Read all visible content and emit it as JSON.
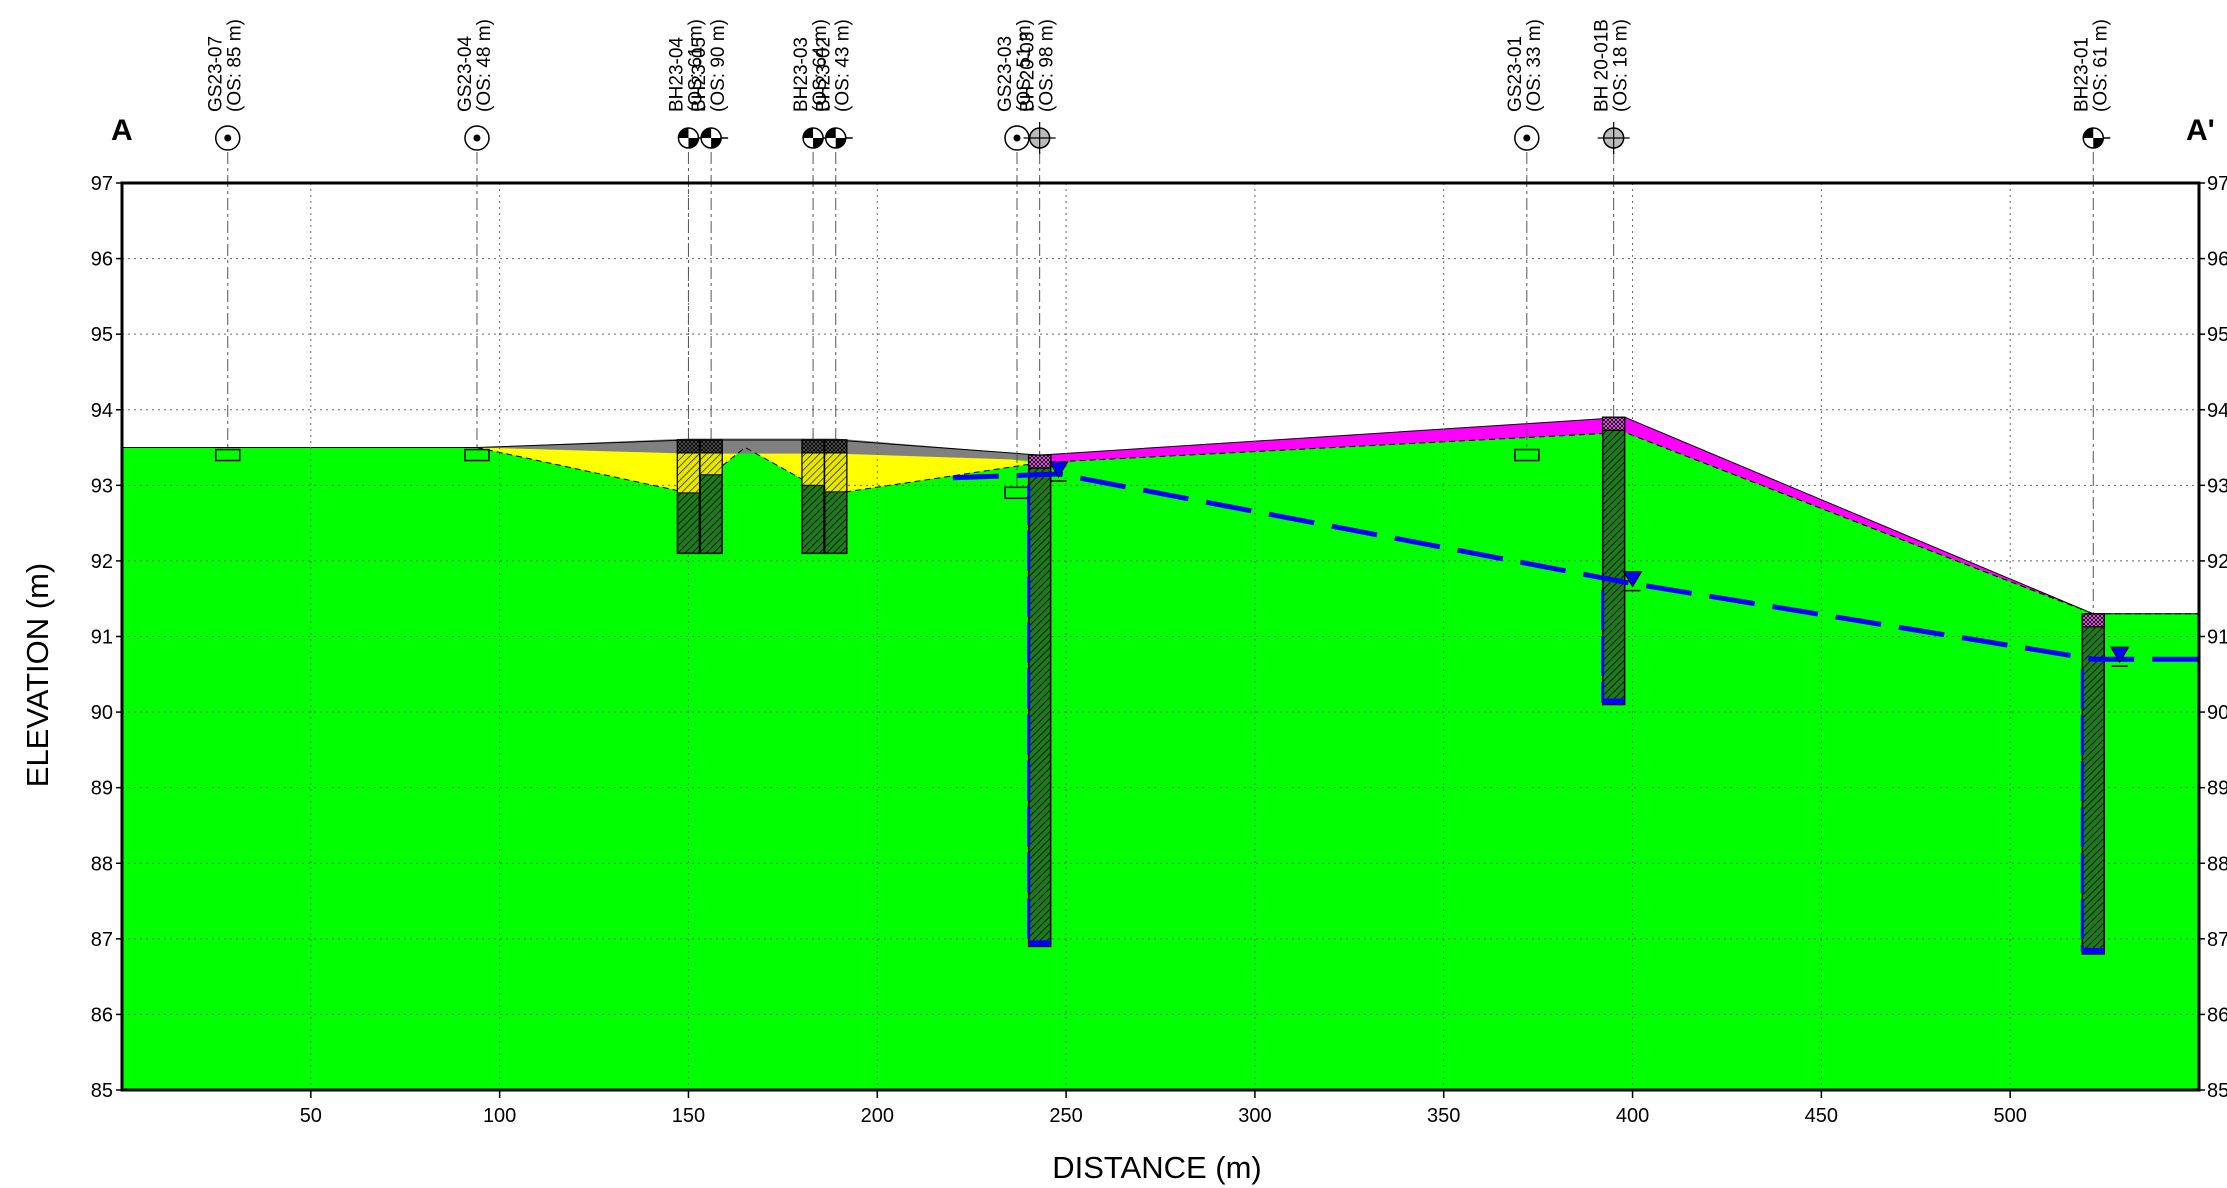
{
  "section": {
    "start_label": "A",
    "end_label": "A'",
    "x_axis_title": "DISTANCE (m)",
    "y_axis_title": "ELEVATION (m)",
    "x_ticks": [
      50,
      100,
      150,
      200,
      250,
      300,
      350,
      400,
      450,
      500
    ],
    "y_ticks_left": [
      "97",
      "96",
      "95",
      "94",
      "93",
      "92",
      "91",
      "90",
      "89",
      "88",
      "87",
      "86",
      "85"
    ],
    "y_ticks_right": [
      "97",
      "96",
      "95",
      "94",
      "93",
      "92",
      "91",
      "90",
      "89",
      "88",
      "87",
      "86",
      "85"
    ],
    "x_range": [
      0,
      550
    ],
    "y_range": [
      85,
      97
    ],
    "grid": true
  },
  "boreholes": [
    {
      "id": "GS23-07",
      "offset": "(OS: 85 m)",
      "symbol": "circle-dot",
      "x": 28,
      "top": 93.5,
      "bottom": 93.3,
      "type": "gs"
    },
    {
      "id": "GS23-04",
      "offset": "(OS: 48 m)",
      "symbol": "circle-dot",
      "x": 94,
      "top": 93.5,
      "bottom": 93.3,
      "type": "gs"
    },
    {
      "id": "BH23-04",
      "offset": "(OS: 61 m)",
      "symbol": "half-filled",
      "x": 150,
      "top": 93.6,
      "bottom": 92.1,
      "type": "bh"
    },
    {
      "id": "BH23-05",
      "offset": "(OS: 90 m)",
      "symbol": "half-filled",
      "x": 156,
      "top": 93.6,
      "bottom": 92.1,
      "type": "bh"
    },
    {
      "id": "BH23-03",
      "offset": "(OS: 64 m)",
      "symbol": "half-filled",
      "x": 183,
      "top": 93.6,
      "bottom": 92.1,
      "type": "bh"
    },
    {
      "id": "BH23-02",
      "offset": "(OS: 43 m)",
      "symbol": "half-filled",
      "x": 189,
      "top": 93.6,
      "bottom": 92.1,
      "type": "bh"
    },
    {
      "id": "GS23-03",
      "offset": "(OS: 51 m)",
      "symbol": "circle-dot",
      "x": 237,
      "top": 93.0,
      "bottom": 92.8,
      "type": "gs"
    },
    {
      "id": "BH 20-03",
      "offset": "(OS: 98 m)",
      "symbol": "crosshair",
      "x": 243,
      "top": 93.4,
      "bottom": 86.9,
      "type": "bh"
    },
    {
      "id": "GS23-01",
      "offset": "(OS: 33 m)",
      "symbol": "circle-dot",
      "x": 372,
      "top": 93.5,
      "bottom": 93.3,
      "type": "gs"
    },
    {
      "id": "BH 20-01B",
      "offset": "(OS: 18 m)",
      "symbol": "crosshair",
      "x": 395,
      "top": 93.9,
      "bottom": 90.1,
      "type": "bh"
    },
    {
      "id": "BH23-01",
      "offset": "(OS: 61 m)",
      "symbol": "half-filled",
      "x": 522,
      "top": 91.3,
      "bottom": 86.8,
      "type": "bh"
    }
  ],
  "layers": {
    "ground_surface": [
      [
        0,
        93.5
      ],
      [
        94,
        93.5
      ],
      [
        150,
        93.6
      ],
      [
        189,
        93.6
      ],
      [
        243,
        93.4
      ],
      [
        398,
        93.9
      ],
      [
        522,
        91.3
      ],
      [
        550,
        91.3
      ]
    ],
    "fill_bottom": [
      [
        94,
        93.5
      ],
      [
        150,
        92.9
      ],
      [
        165,
        93.5
      ],
      [
        183,
        93.0
      ],
      [
        190,
        92.9
      ],
      [
        243,
        93.3
      ]
    ],
    "topsoil_bottom": [
      [
        243,
        93.3
      ],
      [
        398,
        93.7
      ],
      [
        522,
        91.3
      ],
      [
        550,
        91.3
      ]
    ],
    "groundwater": [
      [
        220,
        93.1
      ],
      [
        248,
        93.15
      ],
      [
        400,
        91.7
      ],
      [
        522,
        90.7
      ],
      [
        550,
        90.7
      ]
    ],
    "colors": {
      "clay": "#00ff00",
      "fill": "#ffff00",
      "asphalt": "#808080",
      "topsoil": "#ff00ff",
      "water": "#0000ff"
    }
  }
}
